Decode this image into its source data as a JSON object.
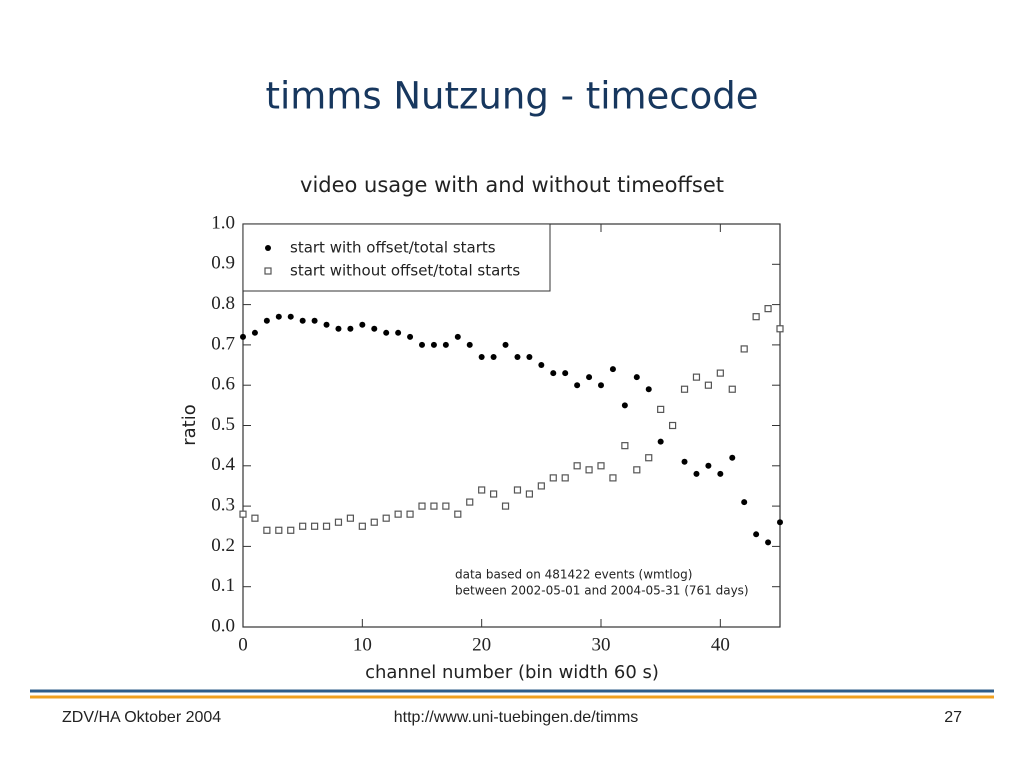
{
  "slide": {
    "title": "timms Nutzung - timecode",
    "footer": {
      "left": "ZDV/HA Oktober 2004",
      "center": "http://www.uni-tuebingen.de/timms",
      "page": "27"
    }
  },
  "chart_data": {
    "type": "scatter",
    "title": "video usage with and without timeoffset",
    "x_label": "channel number (bin width 60 s)",
    "y_label": "ratio",
    "annotations": [
      "data based on 481422 events (wmtlog)",
      "between 2002-05-01 and 2004-05-31 (761 days)"
    ],
    "legend": "top-left",
    "x": [
      0,
      1,
      2,
      3,
      4,
      5,
      6,
      7,
      8,
      9,
      10,
      11,
      12,
      13,
      14,
      15,
      16,
      17,
      18,
      19,
      20,
      21,
      22,
      23,
      24,
      25,
      26,
      27,
      28,
      29,
      30,
      31,
      32,
      33,
      34,
      35,
      36,
      37,
      38,
      39,
      40,
      41,
      42,
      43,
      44,
      45
    ],
    "series": [
      {
        "name": "start with offset/total starts",
        "color": "#000000",
        "marker": "circle",
        "values": [
          0.72,
          0.73,
          0.76,
          0.77,
          0.77,
          0.76,
          0.76,
          0.75,
          0.74,
          0.74,
          0.75,
          0.74,
          0.73,
          0.73,
          0.72,
          0.7,
          0.7,
          0.7,
          0.72,
          0.7,
          0.67,
          0.67,
          0.7,
          0.67,
          0.67,
          0.65,
          0.63,
          0.63,
          0.6,
          0.62,
          0.6,
          0.64,
          0.55,
          0.62,
          0.59,
          0.46,
          0.5,
          0.41,
          0.38,
          0.4,
          0.38,
          0.42,
          0.31,
          0.23,
          0.21,
          0.26
        ]
      },
      {
        "name": "start without offset/total starts",
        "color": "#555555",
        "marker": "square",
        "values": [
          0.28,
          0.27,
          0.24,
          0.24,
          0.24,
          0.25,
          0.25,
          0.25,
          0.26,
          0.27,
          0.25,
          0.26,
          0.27,
          0.28,
          0.28,
          0.3,
          0.3,
          0.3,
          0.28,
          0.31,
          0.34,
          0.33,
          0.3,
          0.34,
          0.33,
          0.35,
          0.37,
          0.37,
          0.4,
          0.39,
          0.4,
          0.37,
          0.45,
          0.39,
          0.42,
          0.54,
          0.5,
          0.59,
          0.62,
          0.6,
          0.63,
          0.59,
          0.69,
          0.77,
          0.79,
          0.74
        ]
      }
    ],
    "xlim": [
      0,
      45
    ],
    "xticks": [
      0,
      10,
      20,
      30,
      40
    ],
    "ylim": [
      0,
      1
    ],
    "yticks": [
      {
        "value": 0,
        "label": "0.0"
      },
      0.1,
      0.2,
      0.3,
      0.4,
      0.5,
      0.6,
      0.7,
      0.8,
      0.9,
      {
        "value": 1,
        "label": "1.0"
      }
    ]
  }
}
